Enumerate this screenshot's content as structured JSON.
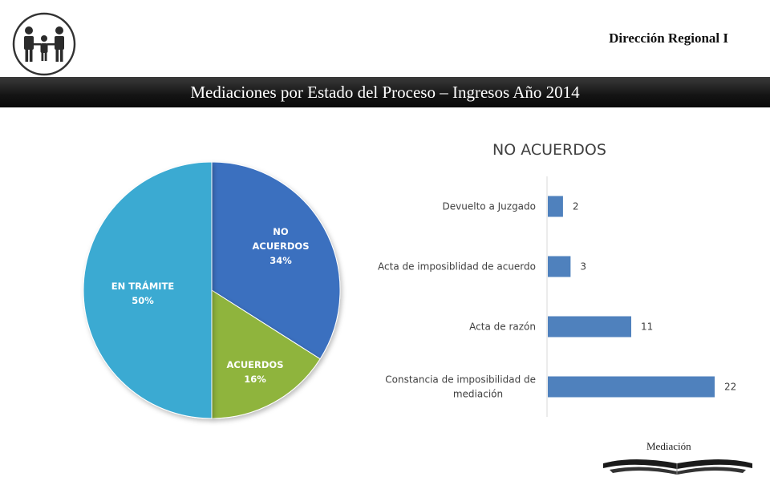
{
  "header": {
    "region": "Dirección Regional I",
    "title": "Mediaciones por Estado del Proceso – Ingresos Año 2014"
  },
  "footer": {
    "label": "Mediación"
  },
  "colors": {
    "no_acuerdos": "#3a6fbf",
    "acuerdos": "#8fb43c",
    "en_tramite": "#3aaad2",
    "bars": "#4f81bd"
  },
  "chart_data": [
    {
      "type": "pie",
      "title": "",
      "slices": [
        {
          "label": "NO ACUERDOS",
          "value": 34,
          "display": "34%",
          "color": "#3a6fbf"
        },
        {
          "label": "ACUERDOS",
          "value": 16,
          "display": "16%",
          "color": "#8fb43c"
        },
        {
          "label": "EN TRÁMITE",
          "value": 50,
          "display": "50%",
          "color": "#3aaad2"
        }
      ],
      "start": "top",
      "direction": "clockwise"
    },
    {
      "type": "bar",
      "orientation": "horizontal",
      "title": "NO ACUERDOS",
      "categories": [
        "Devuelto a Juzgado",
        "Acta de imposiblidad de acuerdo",
        "Acta de razón",
        "Constancia de imposibilidad de mediación"
      ],
      "category_lines": [
        [
          "Devuelto a Juzgado"
        ],
        [
          "Acta de imposiblidad de acuerdo"
        ],
        [
          "Acta de razón"
        ],
        [
          "Constancia de imposibilidad de",
          "mediación"
        ]
      ],
      "values": [
        2,
        3,
        11,
        22
      ],
      "xlim": [
        0,
        22
      ],
      "grid": false,
      "data_labels": true
    }
  ]
}
